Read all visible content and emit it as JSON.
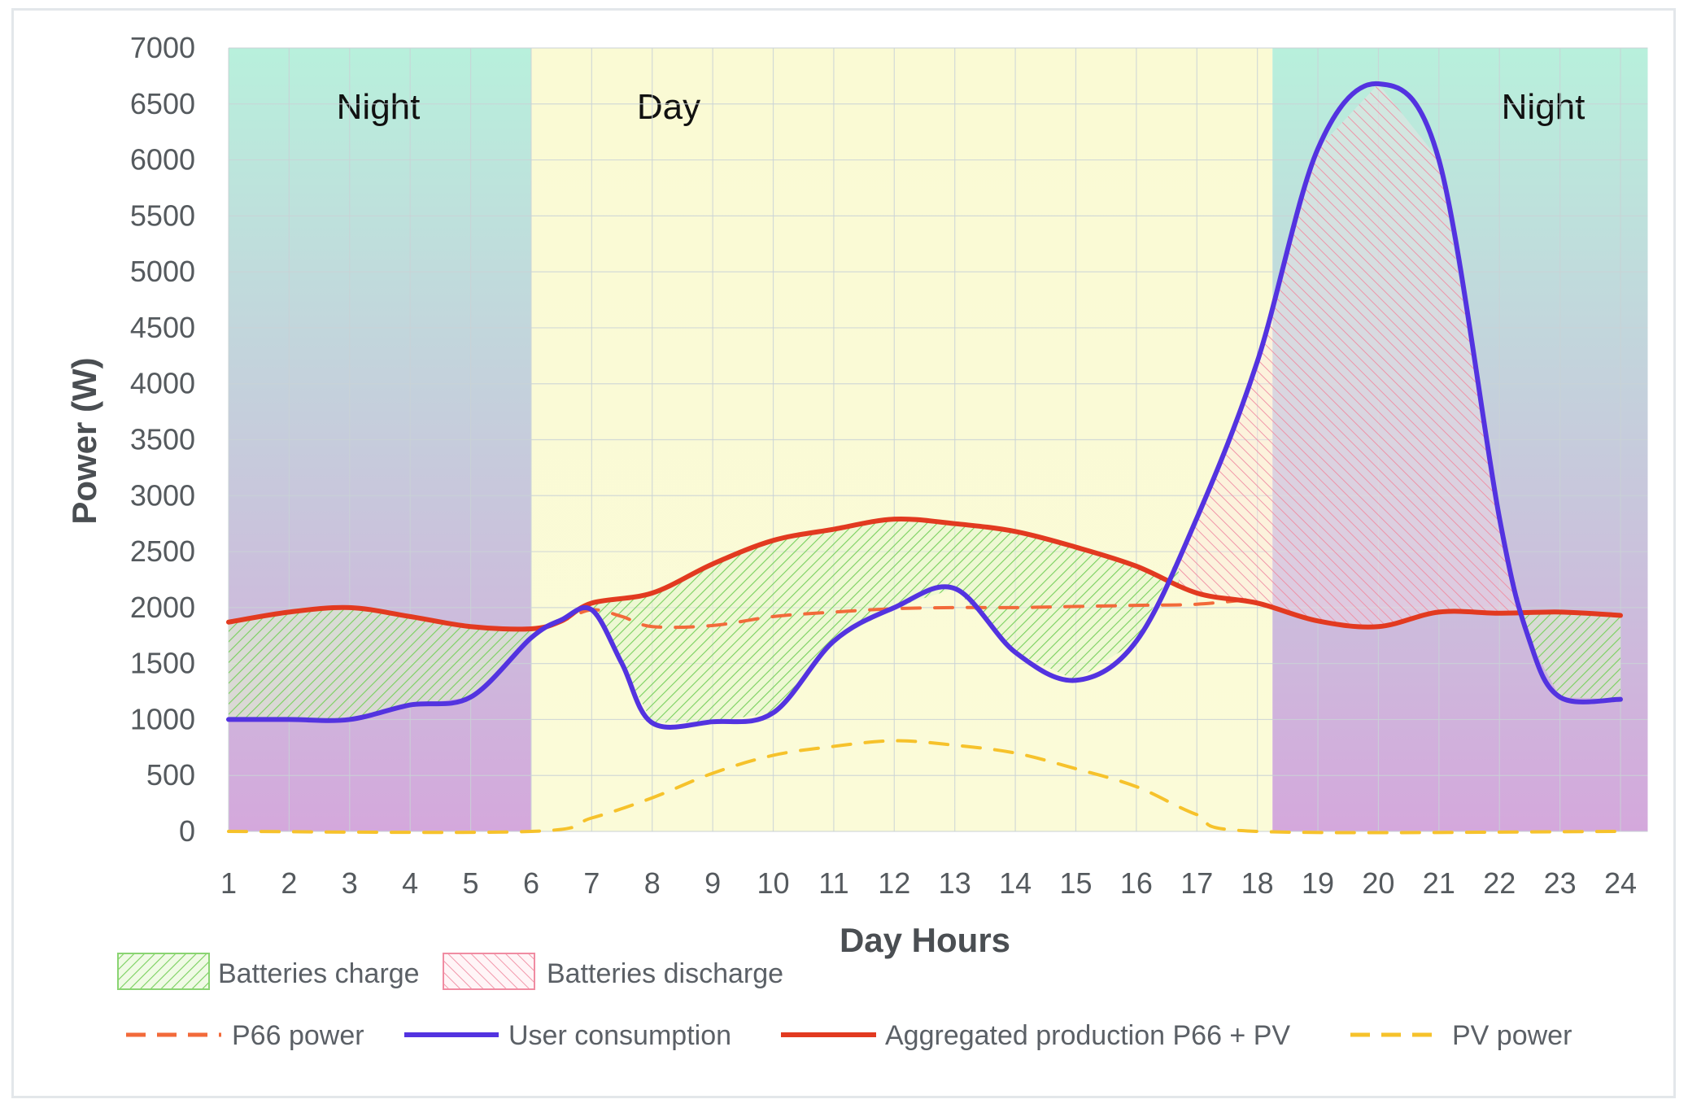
{
  "chart_data": {
    "type": "line",
    "xlabel": "Day Hours",
    "ylabel": "Power (W)",
    "xlim": [
      1,
      24
    ],
    "ylim": [
      0,
      7000
    ],
    "x_ticks": [
      1,
      2,
      3,
      4,
      5,
      6,
      7,
      8,
      9,
      10,
      11,
      12,
      13,
      14,
      15,
      16,
      17,
      18,
      19,
      20,
      21,
      22,
      23,
      24
    ],
    "y_ticks": [
      0,
      500,
      1000,
      1500,
      2000,
      2500,
      3000,
      3500,
      4000,
      4500,
      5000,
      5500,
      6000,
      6500,
      7000
    ],
    "grid": true,
    "legend_position": "bottom",
    "bands": [
      {
        "label": "Night",
        "from": 1,
        "to": 6,
        "color_top": "#b8f0dc",
        "color_bottom": "#d4a8dc"
      },
      {
        "label": "Day",
        "from": 6,
        "to": 18.25,
        "color_top": "#fafad4",
        "color_bottom": "#fbfbd8"
      },
      {
        "label": "Night",
        "from": 18.25,
        "to": 24.45,
        "color_top": "#b8f0dc",
        "color_bottom": "#d4a8dc"
      }
    ],
    "series": [
      {
        "name": "P66 power",
        "style": "dashed",
        "color": "#f26a3a",
        "points": [
          [
            1,
            1870
          ],
          [
            2,
            1960
          ],
          [
            3,
            2000
          ],
          [
            4,
            1920
          ],
          [
            5,
            1830
          ],
          [
            6,
            1810
          ],
          [
            6.5,
            1880
          ],
          [
            7,
            1980
          ],
          [
            7.5,
            1920
          ],
          [
            8,
            1830
          ],
          [
            9,
            1840
          ],
          [
            10,
            1920
          ],
          [
            11,
            1960
          ],
          [
            12,
            1990
          ],
          [
            13,
            2000
          ],
          [
            14,
            2000
          ],
          [
            15,
            2010
          ],
          [
            16,
            2020
          ],
          [
            17,
            2030
          ],
          [
            18,
            2080
          ]
        ]
      },
      {
        "name": "User consumption",
        "style": "solid",
        "color": "#5333e0",
        "points": [
          [
            1,
            1000
          ],
          [
            2,
            1000
          ],
          [
            3,
            1000
          ],
          [
            4,
            1130
          ],
          [
            5,
            1200
          ],
          [
            6,
            1730
          ],
          [
            6.5,
            1890
          ],
          [
            7,
            1980
          ],
          [
            7.5,
            1500
          ],
          [
            8,
            970
          ],
          [
            9,
            980
          ],
          [
            10,
            1060
          ],
          [
            11,
            1700
          ],
          [
            12,
            2000
          ],
          [
            13,
            2170
          ],
          [
            14,
            1600
          ],
          [
            15,
            1350
          ],
          [
            16,
            1700
          ],
          [
            17,
            2800
          ],
          [
            18,
            4200
          ],
          [
            19,
            6100
          ],
          [
            20,
            6680
          ],
          [
            21,
            6000
          ],
          [
            22,
            2800
          ],
          [
            22.5,
            1700
          ],
          [
            23,
            1200
          ],
          [
            24,
            1180
          ]
        ]
      },
      {
        "name": "Aggregated production P66 + PV",
        "style": "solid",
        "color": "#e23a20",
        "points": [
          [
            1,
            1870
          ],
          [
            2,
            1960
          ],
          [
            3,
            2000
          ],
          [
            4,
            1920
          ],
          [
            5,
            1830
          ],
          [
            6,
            1810
          ],
          [
            6.5,
            1880
          ],
          [
            7,
            2040
          ],
          [
            8,
            2130
          ],
          [
            9,
            2390
          ],
          [
            10,
            2600
          ],
          [
            11,
            2700
          ],
          [
            12,
            2790
          ],
          [
            13,
            2750
          ],
          [
            14,
            2680
          ],
          [
            15,
            2540
          ],
          [
            16,
            2370
          ],
          [
            17,
            2130
          ],
          [
            18,
            2040
          ],
          [
            19,
            1880
          ],
          [
            20,
            1830
          ],
          [
            21,
            1960
          ],
          [
            22,
            1950
          ],
          [
            23,
            1960
          ],
          [
            24,
            1930
          ]
        ]
      },
      {
        "name": "PV power",
        "style": "dashed",
        "color": "#f6c22b",
        "points": [
          [
            1,
            0
          ],
          [
            6,
            0
          ],
          [
            7,
            120
          ],
          [
            8,
            300
          ],
          [
            9,
            520
          ],
          [
            10,
            680
          ],
          [
            11,
            760
          ],
          [
            12,
            810
          ],
          [
            13,
            770
          ],
          [
            14,
            700
          ],
          [
            15,
            560
          ],
          [
            16,
            400
          ],
          [
            17,
            150
          ],
          [
            18,
            0
          ],
          [
            24,
            0
          ]
        ]
      }
    ],
    "fills": [
      {
        "name": "Batteries charge",
        "color": "#82d86a",
        "pattern": "hatch-right"
      },
      {
        "name": "Batteries discharge",
        "color": "#f28aa0",
        "pattern": "hatch-left"
      }
    ]
  }
}
